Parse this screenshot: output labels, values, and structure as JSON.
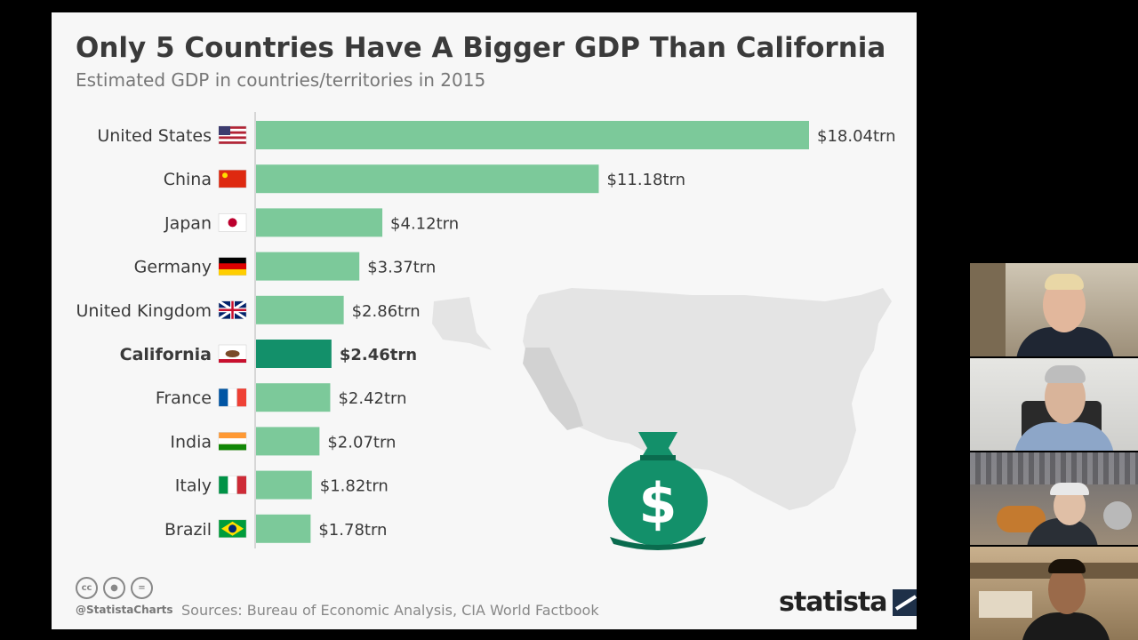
{
  "chart_data": {
    "type": "bar",
    "orientation": "horizontal",
    "title": "Only 5 Countries Have A Bigger GDP Than California",
    "subtitle": "Estimated GDP in countries/territories in 2015",
    "categories": [
      "United States",
      "China",
      "Japan",
      "Germany",
      "United Kingdom",
      "California",
      "France",
      "India",
      "Italy",
      "Brazil"
    ],
    "values": [
      18.04,
      11.18,
      4.12,
      3.37,
      2.86,
      2.46,
      2.42,
      2.07,
      1.82,
      1.78
    ],
    "value_labels": [
      "$18.04trn",
      "$11.18trn",
      "$4.12trn",
      "$3.37trn",
      "$2.86trn",
      "$2.46trn",
      "$2.42trn",
      "$2.07trn",
      "$1.82trn",
      "$1.78trn"
    ],
    "highlight": "California",
    "xlim": [
      0,
      18.04
    ],
    "grid": false,
    "colors": {
      "bar": "#7cc99a",
      "highlight": "#13906a",
      "moneybag": "#13906a",
      "map": "#e3e3e3"
    }
  },
  "footer": {
    "handle": "@StatistaCharts",
    "sources": "Sources: Bureau of Economic Analysis, CIA World Factbook",
    "logo": "statista"
  },
  "video_participants": 4
}
